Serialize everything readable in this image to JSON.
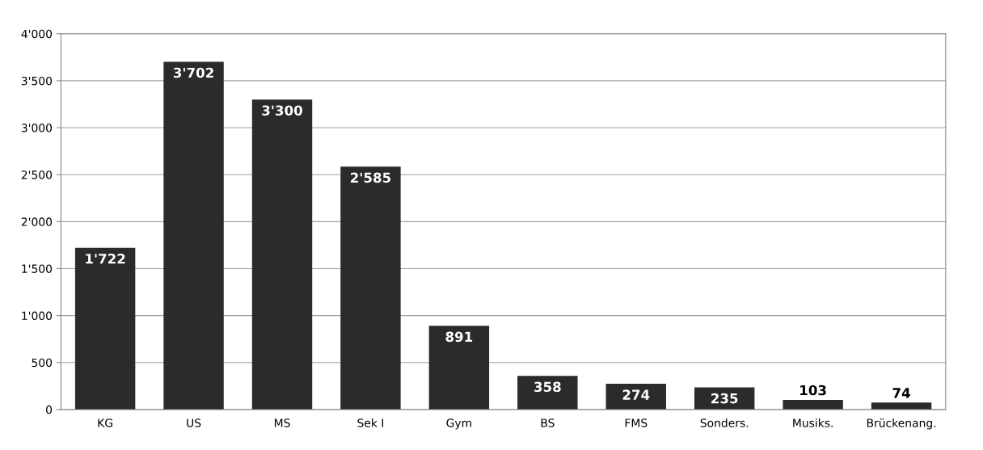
{
  "chart_data": {
    "type": "bar",
    "categories": [
      "KG",
      "US",
      "MS",
      "Sek I",
      "Gym",
      "BS",
      "FMS",
      "Sonders.",
      "Musiks.",
      "Brückenang."
    ],
    "values": [
      1722,
      3702,
      3300,
      2585,
      891,
      358,
      274,
      235,
      103,
      74
    ],
    "value_labels": [
      "1'722",
      "3'702",
      "3'300",
      "2'585",
      "891",
      "358",
      "274",
      "235",
      "103",
      "74"
    ],
    "color": "#2b2b2b",
    "ylim": [
      0,
      4000
    ],
    "yticks": [
      {
        "value": 0,
        "label": "0"
      },
      {
        "value": 500,
        "label": "500"
      },
      {
        "value": 1000,
        "label": "1'000"
      },
      {
        "value": 1500,
        "label": "1'500"
      },
      {
        "value": 2000,
        "label": "2'000"
      },
      {
        "value": 2500,
        "label": "2'500"
      },
      {
        "value": 3000,
        "label": "3'000"
      },
      {
        "value": 3500,
        "label": "3'500"
      },
      {
        "value": 4000,
        "label": "4'000"
      }
    ],
    "grid": "y"
  }
}
